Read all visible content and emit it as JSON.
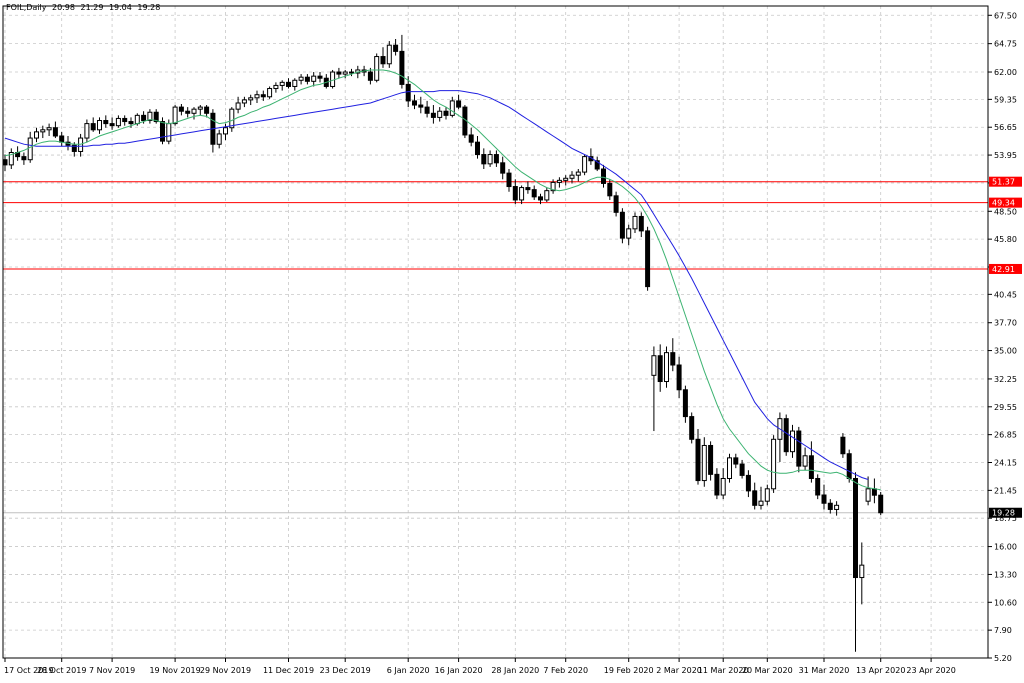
{
  "header": {
    "symbol": "FOIL,Daily",
    "open": "20.98",
    "high": "21.29",
    "low": "19.04",
    "close": "19.28"
  },
  "chart_data": {
    "type": "candlestick",
    "ylim": [
      5.2,
      68.4
    ],
    "y_ticks": [
      "67.50",
      "64.75",
      "62.00",
      "59.35",
      "56.65",
      "53.95",
      "51.25",
      "48.50",
      "45.80",
      "43.10",
      "40.45",
      "37.70",
      "35.00",
      "32.25",
      "29.55",
      "26.85",
      "24.15",
      "21.45",
      "18.75",
      "16.00",
      "13.30",
      "10.60",
      "7.90",
      "5.20"
    ],
    "x_ticks": [
      "17 Oct 2019",
      "28 Oct 2019",
      "7 Nov 2019",
      "19 Nov 2019",
      "29 Nov 2019",
      "11 Dec 2019",
      "23 Dec 2019",
      "6 Jan 2020",
      "16 Jan 2020",
      "28 Jan 2020",
      "7 Feb 2020",
      "19 Feb 2020",
      "2 Mar 2020",
      "11 Mar 2020",
      "20 Mar 2020",
      "31 Mar 2020",
      "13 Apr 2020",
      "23 Apr 2020"
    ],
    "x_tick_bar_index": [
      0,
      9,
      17,
      27,
      35,
      45,
      54,
      64,
      72,
      81,
      89,
      99,
      107,
      114,
      121,
      130,
      139,
      147
    ],
    "horizontal_lines": [
      {
        "value": 51.37,
        "label": "51.37",
        "color": "#ff0000"
      },
      {
        "value": 49.34,
        "label": "49.34",
        "color": "#ff0000"
      },
      {
        "value": 42.91,
        "label": "42.91",
        "color": "#ff0000"
      }
    ],
    "last_price": {
      "value": 19.28,
      "label": "19.28",
      "color": "#c0c0c0"
    },
    "ohlc": [
      [
        53.5,
        54.0,
        52.4,
        53.0
      ],
      [
        53.0,
        54.6,
        52.6,
        54.2
      ],
      [
        54.2,
        54.8,
        53.4,
        53.8
      ],
      [
        53.8,
        54.2,
        53.0,
        53.5
      ],
      [
        53.5,
        56.2,
        53.2,
        55.6
      ],
      [
        55.6,
        56.6,
        55.2,
        56.2
      ],
      [
        56.2,
        56.8,
        55.6,
        56.4
      ],
      [
        56.4,
        57.0,
        55.8,
        56.6
      ],
      [
        56.6,
        57.2,
        55.6,
        55.8
      ],
      [
        55.8,
        56.2,
        54.8,
        55.2
      ],
      [
        55.2,
        55.8,
        54.4,
        54.9
      ],
      [
        54.9,
        55.2,
        53.8,
        54.3
      ],
      [
        54.3,
        56.0,
        53.8,
        55.6
      ],
      [
        55.6,
        57.4,
        55.2,
        57.0
      ],
      [
        57.0,
        57.6,
        56.2,
        56.4
      ],
      [
        56.4,
        57.6,
        56.0,
        57.3
      ],
      [
        57.3,
        57.8,
        56.6,
        57.0
      ],
      [
        57.0,
        57.6,
        56.4,
        56.8
      ],
      [
        56.8,
        57.8,
        56.6,
        57.5
      ],
      [
        57.5,
        57.8,
        56.8,
        57.2
      ],
      [
        57.2,
        57.6,
        56.6,
        57.0
      ],
      [
        57.0,
        58.0,
        56.8,
        57.8
      ],
      [
        57.8,
        58.2,
        57.0,
        57.3
      ],
      [
        57.3,
        58.4,
        57.0,
        58.1
      ],
      [
        58.1,
        58.4,
        57.0,
        57.2
      ],
      [
        57.2,
        57.6,
        55.0,
        55.3
      ],
      [
        55.3,
        57.4,
        55.0,
        57.0
      ],
      [
        57.0,
        58.8,
        56.8,
        58.6
      ],
      [
        58.6,
        58.9,
        57.8,
        58.2
      ],
      [
        58.2,
        58.6,
        57.6,
        58.0
      ],
      [
        58.0,
        58.6,
        57.4,
        58.4
      ],
      [
        58.4,
        58.8,
        57.8,
        58.6
      ],
      [
        58.6,
        58.8,
        57.6,
        58.0
      ],
      [
        58.0,
        58.4,
        54.2,
        55.0
      ],
      [
        55.0,
        56.4,
        54.6,
        56.0
      ],
      [
        56.0,
        57.0,
        55.4,
        56.6
      ],
      [
        56.6,
        58.6,
        56.2,
        58.4
      ],
      [
        58.4,
        59.6,
        58.0,
        59.0
      ],
      [
        59.0,
        59.6,
        58.6,
        59.3
      ],
      [
        59.3,
        59.8,
        58.8,
        59.5
      ],
      [
        59.5,
        60.2,
        59.0,
        59.8
      ],
      [
        59.8,
        60.2,
        59.2,
        59.6
      ],
      [
        59.6,
        60.6,
        59.4,
        60.4
      ],
      [
        60.4,
        61.0,
        60.0,
        60.7
      ],
      [
        60.7,
        61.2,
        60.2,
        61.0
      ],
      [
        61.0,
        61.4,
        60.4,
        60.6
      ],
      [
        60.6,
        61.4,
        60.2,
        61.2
      ],
      [
        61.2,
        61.8,
        60.8,
        61.5
      ],
      [
        61.5,
        61.8,
        60.8,
        61.1
      ],
      [
        61.1,
        62.0,
        60.6,
        61.6
      ],
      [
        61.6,
        62.0,
        61.0,
        61.4
      ],
      [
        61.4,
        61.8,
        60.4,
        60.6
      ],
      [
        60.6,
        62.2,
        60.4,
        62.0
      ],
      [
        62.0,
        62.4,
        61.4,
        61.8
      ],
      [
        61.8,
        62.2,
        61.4,
        62.0
      ],
      [
        62.0,
        62.3,
        61.6,
        61.9
      ],
      [
        61.9,
        62.6,
        61.4,
        62.2
      ],
      [
        62.2,
        62.6,
        61.6,
        62.0
      ],
      [
        62.0,
        62.4,
        60.8,
        61.2
      ],
      [
        61.2,
        63.8,
        61.0,
        63.5
      ],
      [
        63.5,
        64.4,
        62.4,
        62.8
      ],
      [
        62.8,
        65.0,
        62.4,
        64.6
      ],
      [
        64.6,
        65.2,
        63.6,
        64.0
      ],
      [
        64.0,
        65.6,
        60.4,
        60.8
      ],
      [
        60.8,
        61.6,
        58.6,
        59.2
      ],
      [
        59.2,
        59.8,
        58.4,
        58.8
      ],
      [
        58.8,
        59.6,
        58.0,
        58.6
      ],
      [
        58.6,
        59.2,
        57.6,
        58.0
      ],
      [
        58.0,
        58.8,
        57.0,
        57.6
      ],
      [
        57.6,
        58.6,
        57.2,
        58.2
      ],
      [
        58.2,
        58.6,
        57.4,
        57.8
      ],
      [
        57.8,
        59.6,
        57.6,
        59.2
      ],
      [
        59.2,
        59.8,
        58.4,
        58.6
      ],
      [
        58.6,
        58.8,
        55.6,
        55.9
      ],
      [
        55.9,
        56.6,
        54.8,
        55.2
      ],
      [
        55.2,
        55.8,
        53.6,
        54.0
      ],
      [
        54.0,
        54.6,
        52.6,
        53.1
      ],
      [
        53.1,
        54.4,
        52.8,
        54.0
      ],
      [
        54.0,
        54.4,
        52.8,
        53.2
      ],
      [
        53.2,
        53.8,
        51.6,
        52.2
      ],
      [
        52.2,
        52.6,
        50.4,
        50.9
      ],
      [
        50.9,
        51.6,
        49.2,
        49.6
      ],
      [
        49.6,
        51.0,
        49.2,
        50.8
      ],
      [
        50.8,
        51.4,
        50.2,
        50.6
      ],
      [
        50.6,
        51.0,
        49.6,
        49.9
      ],
      [
        49.9,
        50.2,
        49.2,
        49.6
      ],
      [
        49.6,
        50.8,
        49.4,
        50.5
      ],
      [
        50.5,
        51.6,
        50.2,
        51.3
      ],
      [
        51.3,
        51.8,
        50.8,
        51.5
      ],
      [
        51.5,
        52.0,
        51.0,
        51.7
      ],
      [
        51.7,
        52.4,
        51.2,
        52.0
      ],
      [
        52.0,
        52.6,
        51.4,
        52.3
      ],
      [
        52.3,
        54.0,
        52.0,
        53.8
      ],
      [
        53.8,
        54.6,
        53.0,
        53.4
      ],
      [
        53.4,
        53.8,
        52.4,
        52.6
      ],
      [
        52.6,
        53.0,
        50.8,
        51.2
      ],
      [
        51.2,
        51.6,
        49.6,
        50.0
      ],
      [
        50.0,
        50.4,
        48.0,
        48.4
      ],
      [
        48.4,
        48.8,
        45.4,
        45.9
      ],
      [
        45.9,
        47.2,
        45.2,
        46.8
      ],
      [
        46.8,
        48.4,
        46.4,
        48.0
      ],
      [
        48.0,
        48.4,
        46.0,
        46.6
      ],
      [
        46.6,
        47.0,
        40.8,
        41.2
      ],
      [
        32.6,
        35.4,
        27.2,
        34.5
      ],
      [
        34.5,
        35.6,
        31.0,
        32.0
      ],
      [
        32.0,
        35.4,
        31.4,
        34.8
      ],
      [
        34.8,
        36.2,
        33.0,
        33.6
      ],
      [
        33.6,
        34.4,
        30.4,
        31.2
      ],
      [
        31.2,
        31.6,
        28.0,
        28.6
      ],
      [
        28.6,
        29.0,
        26.0,
        26.4
      ],
      [
        26.4,
        27.4,
        22.0,
        22.4
      ],
      [
        22.4,
        26.6,
        21.8,
        25.8
      ],
      [
        25.8,
        26.2,
        22.4,
        23.0
      ],
      [
        23.0,
        23.6,
        20.6,
        21.0
      ],
      [
        21.0,
        23.6,
        20.6,
        22.6
      ],
      [
        22.6,
        25.0,
        22.2,
        24.6
      ],
      [
        24.6,
        25.0,
        23.6,
        24.0
      ],
      [
        24.0,
        24.4,
        22.6,
        22.9
      ],
      [
        22.9,
        23.4,
        20.8,
        21.4
      ],
      [
        21.4,
        22.2,
        19.6,
        20.0
      ],
      [
        20.0,
        21.8,
        19.6,
        20.4
      ],
      [
        20.4,
        22.0,
        20.0,
        21.6
      ],
      [
        21.6,
        26.8,
        21.2,
        26.4
      ],
      [
        26.4,
        29.0,
        24.2,
        28.4
      ],
      [
        28.4,
        28.8,
        24.8,
        25.2
      ],
      [
        25.2,
        27.8,
        24.6,
        27.2
      ],
      [
        27.2,
        27.6,
        23.2,
        23.8
      ],
      [
        23.8,
        25.6,
        23.4,
        24.8
      ],
      [
        24.8,
        26.2,
        22.2,
        22.6
      ],
      [
        22.6,
        23.0,
        20.6,
        21.0
      ],
      [
        21.0,
        22.0,
        19.6,
        20.2
      ],
      [
        20.2,
        20.6,
        19.2,
        19.6
      ],
      [
        19.6,
        20.4,
        19.0,
        20.0
      ],
      [
        26.6,
        27.0,
        24.6,
        25.0
      ],
      [
        25.0,
        25.4,
        22.2,
        22.6
      ],
      [
        22.6,
        23.2,
        5.8,
        13.0
      ],
      [
        13.0,
        16.4,
        10.4,
        14.2
      ],
      [
        20.4,
        22.8,
        20.0,
        21.6
      ],
      [
        21.6,
        22.6,
        20.2,
        20.98
      ],
      [
        20.98,
        21.29,
        19.04,
        19.28
      ]
    ],
    "ma_blue_start_index": 0,
    "ma_blue": [
      55.6,
      55.4,
      55.2,
      55.0,
      54.9,
      54.8,
      54.8,
      54.8,
      54.8,
      54.8,
      54.8,
      54.8,
      54.8,
      54.8,
      54.9,
      54.9,
      55.0,
      55.0,
      55.1,
      55.1,
      55.2,
      55.3,
      55.4,
      55.5,
      55.6,
      55.7,
      55.8,
      55.9,
      56.0,
      56.1,
      56.2,
      56.3,
      56.4,
      56.5,
      56.6,
      56.7,
      56.8,
      56.9,
      57.0,
      57.1,
      57.2,
      57.3,
      57.4,
      57.5,
      57.6,
      57.7,
      57.8,
      57.9,
      58.0,
      58.1,
      58.2,
      58.3,
      58.4,
      58.5,
      58.6,
      58.7,
      58.8,
      58.9,
      59.0,
      59.2,
      59.4,
      59.6,
      59.8,
      60.0,
      60.1,
      60.1,
      60.1,
      60.1,
      60.1,
      60.2,
      60.2,
      60.2,
      60.2,
      60.1,
      60.0,
      59.9,
      59.7,
      59.5,
      59.2,
      58.9,
      58.6,
      58.2,
      57.8,
      57.4,
      57.0,
      56.6,
      56.2,
      55.8,
      55.4,
      55.0,
      54.6,
      54.3,
      54.0,
      53.7,
      53.3,
      52.9,
      52.5,
      52.1,
      51.6,
      51.1,
      50.6,
      50.1,
      49.2,
      48.2,
      47.2,
      46.2,
      45.2,
      44.2,
      43.1,
      42.0,
      40.8,
      39.6,
      38.4,
      37.2,
      36.0,
      34.8,
      33.6,
      32.4,
      31.2,
      30.0,
      29.2,
      28.4,
      27.8,
      27.4,
      27.0,
      26.6,
      26.2,
      25.8,
      25.4,
      25.0,
      24.6,
      24.2,
      23.9,
      23.6,
      23.3,
      23.0,
      22.7,
      22.5
    ],
    "ma_green_start_index": 0,
    "ma_green": [
      53.9,
      54.0,
      54.2,
      54.4,
      54.7,
      55.0,
      55.2,
      55.3,
      55.3,
      55.2,
      55.1,
      55.0,
      55.0,
      55.2,
      55.5,
      55.8,
      56.0,
      56.2,
      56.4,
      56.6,
      56.8,
      57.0,
      57.2,
      57.4,
      57.3,
      57.1,
      57.0,
      57.1,
      57.3,
      57.5,
      57.7,
      57.8,
      57.7,
      57.3,
      57.0,
      57.1,
      57.3,
      57.6,
      57.8,
      58.1,
      58.3,
      58.6,
      58.8,
      59.1,
      59.4,
      59.7,
      60.0,
      60.3,
      60.5,
      60.7,
      60.8,
      61.0,
      61.2,
      61.4,
      61.6,
      61.8,
      62.0,
      62.1,
      62.2,
      62.2,
      62.2,
      62.1,
      61.9,
      61.6,
      61.2,
      60.8,
      60.3,
      59.8,
      59.3,
      58.9,
      58.6,
      58.2,
      57.8,
      57.4,
      56.9,
      56.4,
      55.8,
      55.2,
      54.6,
      54.0,
      53.4,
      52.8,
      52.3,
      51.9,
      51.5,
      51.1,
      50.8,
      50.6,
      50.5,
      50.6,
      50.8,
      51.0,
      51.3,
      51.6,
      51.8,
      51.8,
      51.6,
      51.3,
      50.9,
      50.4,
      49.8,
      49.0,
      48.0,
      46.8,
      45.4,
      43.8,
      42.0,
      40.2,
      38.4,
      36.6,
      34.8,
      33.0,
      31.4,
      29.8,
      28.4,
      27.4,
      26.6,
      25.8,
      25.0,
      24.4,
      23.8,
      23.4,
      23.2,
      23.1,
      23.1,
      23.2,
      23.4,
      23.4,
      23.4,
      23.3,
      23.2,
      23.1,
      23.2,
      23.0,
      22.6,
      22.2,
      21.9,
      21.7,
      21.6,
      21.5
    ]
  }
}
